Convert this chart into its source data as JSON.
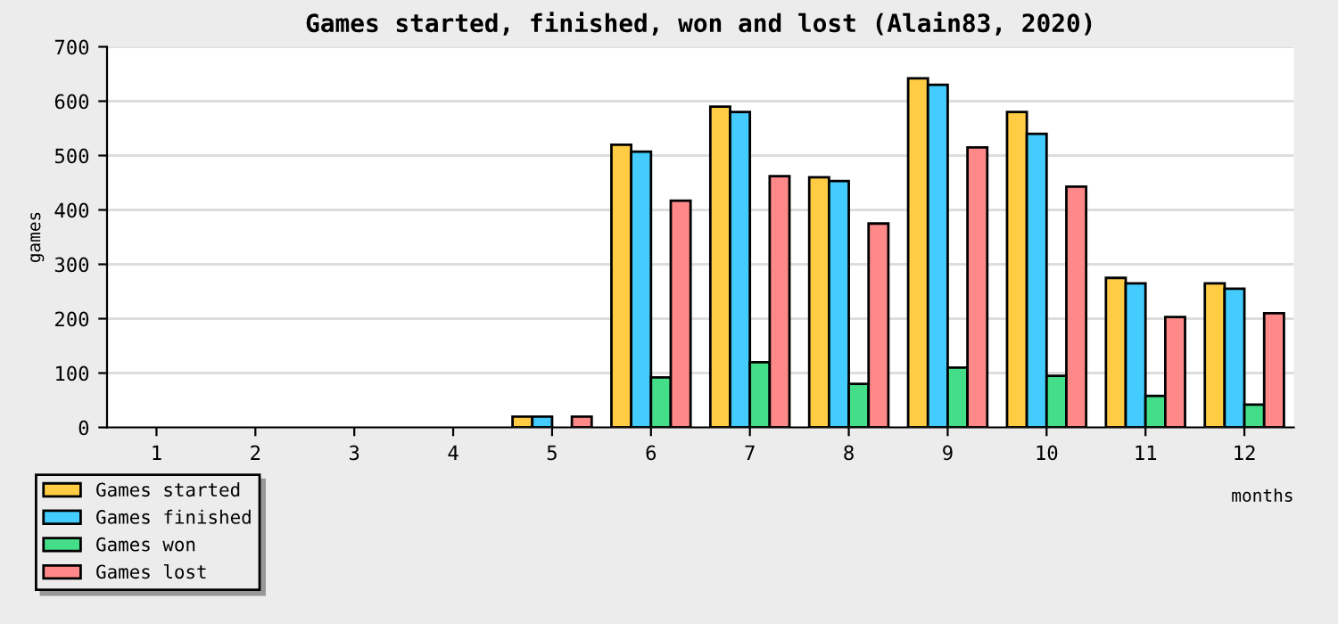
{
  "chart_data": {
    "type": "bar",
    "title": "Games started, finished, won and lost (Alain83, 2020)",
    "xlabel": "months",
    "ylabel": "games",
    "categories": [
      "1",
      "2",
      "3",
      "4",
      "5",
      "6",
      "7",
      "8",
      "9",
      "10",
      "11",
      "12"
    ],
    "series": [
      {
        "name": "Games started",
        "color": "#ffcc44",
        "values": [
          null,
          null,
          null,
          null,
          20,
          520,
          590,
          460,
          642,
          580,
          275,
          265
        ]
      },
      {
        "name": "Games finished",
        "color": "#44ccff",
        "values": [
          null,
          null,
          null,
          null,
          20,
          507,
          580,
          453,
          630,
          540,
          265,
          255
        ]
      },
      {
        "name": "Games won",
        "color": "#44dd88",
        "values": [
          null,
          null,
          null,
          null,
          null,
          92,
          120,
          80,
          110,
          95,
          58,
          42
        ]
      },
      {
        "name": "Games lost",
        "color": "#ff8888",
        "values": [
          null,
          null,
          null,
          null,
          20,
          417,
          462,
          375,
          515,
          443,
          203,
          210
        ]
      }
    ],
    "ylim": [
      0,
      700
    ],
    "yticks": [
      0,
      100,
      200,
      300,
      400,
      500,
      600,
      700
    ],
    "grid": "y",
    "legend": "bottom left"
  }
}
